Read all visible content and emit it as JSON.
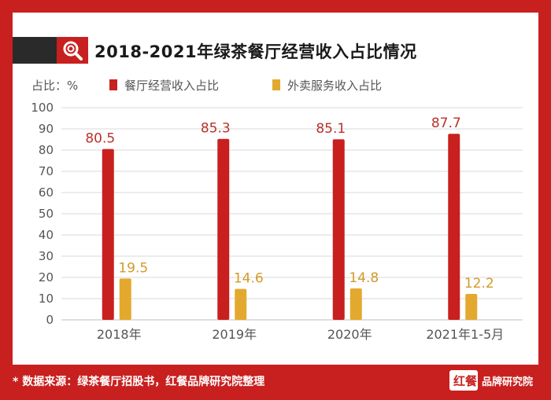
{
  "title": "2018-2021年绿茶餐厅经营收入占比情况",
  "unit_label": "占比：%",
  "footer": "* 数据来源：绿茶餐厅招股书，红餐品牌研究院整理",
  "logo": {
    "mark": "红餐",
    "text": "品牌研究院"
  },
  "colors": {
    "frame": "#c8201f",
    "restaurant": "#c8201f",
    "delivery": "#e3a92e",
    "grid": "#d9d9d9",
    "axis_text": "#555555"
  },
  "icons": {
    "title": "search-icon"
  },
  "chart_data": {
    "type": "bar",
    "categories": [
      "2018年",
      "2019年",
      "2020年",
      "2021年1-5月"
    ],
    "series": [
      {
        "name": "餐厅经营收入占比",
        "values": [
          80.5,
          85.3,
          85.1,
          87.7
        ],
        "color": "#c8201f"
      },
      {
        "name": "外卖服务收入占比",
        "values": [
          19.5,
          14.6,
          14.8,
          12.2
        ],
        "color": "#e3a92e"
      }
    ],
    "yticks": [
      0,
      10,
      20,
      30,
      40,
      50,
      60,
      70,
      80,
      90,
      100
    ],
    "ylim": [
      0,
      100
    ],
    "grid": true,
    "legend_position": "top-left"
  }
}
